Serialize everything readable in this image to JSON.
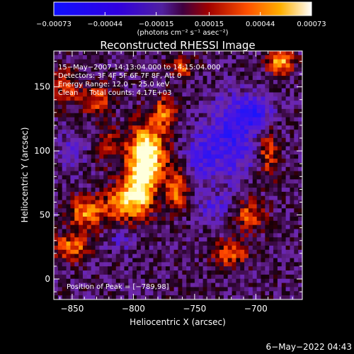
{
  "chart_data": {
    "type": "heatmap",
    "title": "Reconstructed RHESSI Image",
    "xlabel": "Heliocentric X (arcsec)",
    "ylabel": "Heliocentric Y (arcsec)",
    "xlim": [
      -865,
      -662
    ],
    "ylim": [
      -16,
      178
    ],
    "x_ticks": [
      -850,
      -800,
      -750,
      -700
    ],
    "y_ticks": [
      0,
      50,
      100,
      150
    ],
    "x_tick_labels": [
      "−850",
      "−800",
      "−750",
      "−700"
    ],
    "y_tick_labels": [
      "0",
      "50",
      "100",
      "150"
    ],
    "colorbar": {
      "range": [
        -0.00073,
        0.00073
      ],
      "ticks": [
        -0.00073,
        -0.00044,
        -0.00015,
        0.00015,
        0.00044,
        0.00073
      ],
      "tick_labels": [
        "−0.00073",
        "−0.00044",
        "−0.00015",
        "0.00015",
        "0.00044",
        "0.00073"
      ],
      "unit_label": "(photons cm⁻² s⁻¹ asec⁻²)"
    },
    "annotations": [
      "15−May−2007 14:13:04.000 to 14:15:04.000",
      "Detectors: 3F 4F 5F 6F 7F 8F, Att 0",
      "Energy Range: 12.0 − 25.0 keV",
      "Clean     Total counts: 4.17E+03"
    ],
    "peak_label": "Position of Peak = [−789,98]",
    "peak_position": [
      -789,
      98
    ],
    "footer": "6−May−2022 04:43"
  }
}
